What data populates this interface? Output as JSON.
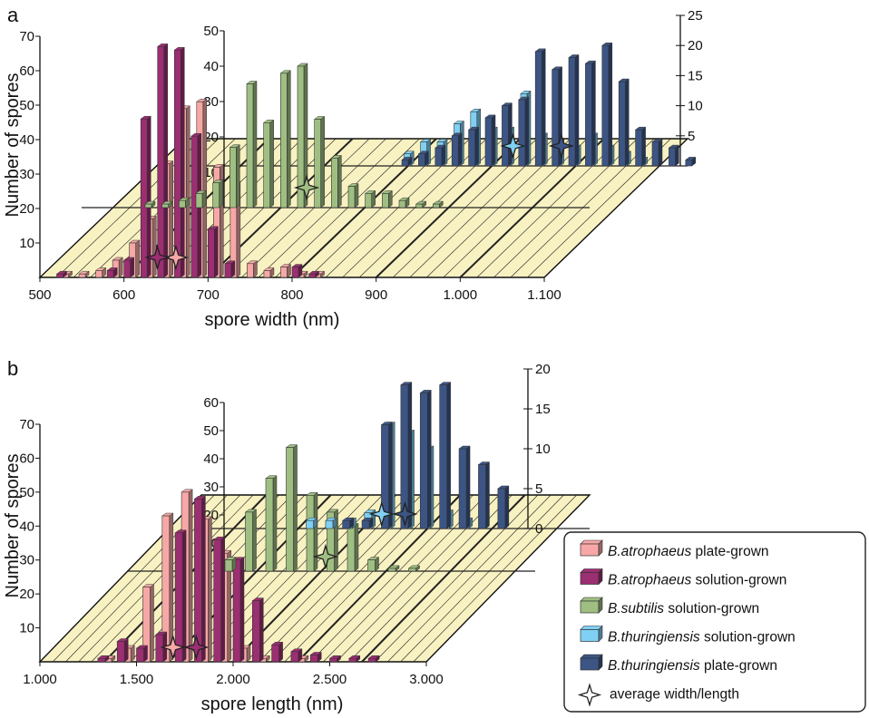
{
  "colors": {
    "atro_plate": "#f7a8a6",
    "atro_solution": "#9c2e72",
    "subtilis_solution": "#9fbf82",
    "thur_solution": "#7fd0f4",
    "thur_plate": "#3c5585",
    "floor": "#f8f1c1",
    "marker_fill": "#ffffff"
  },
  "legend": [
    {
      "species": "B.atrophaeus",
      "rest": " plate-grown",
      "series": "atro_plate"
    },
    {
      "species": "B.atrophaeus",
      "rest": " solution-grown",
      "series": "atro_solution"
    },
    {
      "species": "B.subtilis",
      "rest": " solution-grown",
      "series": "subtilis_solution"
    },
    {
      "species": "B.thuringiensis",
      "rest": " solution-grown",
      "series": "thur_solution"
    },
    {
      "species": "B.thuringiensis",
      "rest": " plate-grown",
      "series": "thur_plate"
    },
    {
      "species": "",
      "rest": "average width/length",
      "series": "marker"
    }
  ],
  "chart_data": [
    {
      "type": "bar",
      "panel": "a",
      "xlabel": "spore width (nm)",
      "ylabel": "Number of spores",
      "x_ticks": [
        "500",
        "600",
        "700",
        "800",
        "900",
        "1.000",
        "1.100"
      ],
      "xlim": [
        500,
        1100
      ],
      "back_axis_left_ticks": [
        "10",
        "20",
        "30",
        "40",
        "50"
      ],
      "back_axis_right_ticks": [
        "5",
        "10",
        "15",
        "20",
        "25"
      ],
      "y_axes": [
        {
          "ticks": [
            "10",
            "20",
            "30",
            "40",
            "50",
            "60",
            "70"
          ],
          "ylim": [
            0,
            70
          ]
        },
        {
          "ticks": [
            "10",
            "20",
            "30",
            "40",
            "50"
          ],
          "ylim": [
            0,
            50
          ]
        },
        {
          "ticks": [
            "5",
            "10",
            "15",
            "20",
            "25"
          ],
          "ylim": [
            0,
            25
          ]
        }
      ],
      "series": [
        {
          "name": "B.atrophaeus plate-grown",
          "row": 0,
          "x": [
            520,
            540,
            560,
            580,
            600,
            620,
            640,
            660,
            680,
            700,
            720,
            740,
            760,
            780,
            800,
            820,
            840
          ],
          "values": [
            1,
            1,
            2,
            5,
            10,
            17,
            33,
            49,
            51,
            32,
            27,
            4,
            2,
            3,
            1,
            1,
            0
          ]
        },
        {
          "name": "B.atrophaeus solution-grown",
          "row": 0,
          "x": [
            520,
            540,
            560,
            580,
            600,
            620,
            640,
            660,
            680,
            700,
            720,
            740,
            760,
            780,
            800,
            820,
            840
          ],
          "values": [
            1,
            0,
            0,
            2,
            5,
            46,
            67,
            66,
            41,
            14,
            4,
            0,
            0,
            0,
            3,
            1,
            0
          ]
        },
        {
          "name": "B.subtilis solution-grown",
          "row": 1,
          "x": [
            575,
            595,
            615,
            635,
            655,
            675,
            695,
            715,
            735,
            755,
            775,
            795,
            815,
            835,
            855,
            875,
            895,
            915,
            935
          ],
          "values": [
            1,
            1,
            2,
            4,
            7,
            17,
            35,
            24,
            38,
            40,
            25,
            14,
            6,
            4,
            4,
            2,
            1,
            1,
            0
          ]
        },
        {
          "name": "B.thuringiensis solution-grown",
          "row": 2,
          "x": [
            740,
            760,
            780,
            800,
            820,
            840,
            860,
            880,
            900,
            920,
            940,
            960,
            980,
            1000,
            1020,
            1040,
            1060,
            1080
          ],
          "values": [
            0,
            2,
            4,
            4,
            7,
            9,
            6,
            6,
            12,
            5,
            4,
            3,
            5,
            3,
            2,
            1,
            0,
            0
          ]
        },
        {
          "name": "B.thuringiensis plate-grown",
          "row": 2,
          "x": [
            750,
            770,
            790,
            810,
            830,
            850,
            870,
            890,
            910,
            930,
            950,
            970,
            990,
            1010,
            1030,
            1050,
            1070,
            1090
          ],
          "values": [
            1,
            2,
            3,
            5,
            6,
            8,
            10,
            11,
            19,
            16,
            18,
            17,
            20,
            14,
            6,
            4,
            3,
            1
          ]
        }
      ],
      "averages": [
        {
          "series": "B.atrophaeus plate-grown",
          "x": 658
        },
        {
          "series": "B.atrophaeus solution-grown",
          "x": 636
        },
        {
          "series": "B.subtilis solution-grown",
          "x": 762
        },
        {
          "series": "B.thuringiensis solution-grown",
          "x": 887
        },
        {
          "series": "B.thuringiensis plate-grown",
          "x": 945
        }
      ]
    },
    {
      "type": "bar",
      "panel": "b",
      "xlabel": "spore length (nm)",
      "ylabel": "Number of spores",
      "x_ticks": [
        "1.000",
        "1.500",
        "2.000",
        "2.500",
        "3.000"
      ],
      "xlim": [
        1000,
        3000
      ],
      "y_axes": [
        {
          "ticks": [
            "10",
            "20",
            "30",
            "40",
            "50",
            "60",
            "70"
          ],
          "ylim": [
            0,
            70
          ]
        },
        {
          "ticks": [
            "10",
            "20",
            "30",
            "40",
            "50",
            "60"
          ],
          "ylim": [
            0,
            60
          ]
        },
        {
          "ticks": [
            "0",
            "5",
            "10",
            "15",
            "20"
          ],
          "ylim": [
            0,
            20
          ]
        }
      ],
      "series": [
        {
          "name": "B.atrophaeus plate-grown",
          "row": 0,
          "x": [
            1200,
            1300,
            1400,
            1500,
            1600,
            1700,
            1800,
            1900,
            2000,
            2100,
            2200,
            2300,
            2400,
            2500,
            2600,
            2700
          ],
          "values": [
            0,
            1,
            4,
            22,
            43,
            50,
            42,
            32,
            4,
            1,
            0,
            1,
            0,
            0,
            0,
            0
          ]
        },
        {
          "name": "B.atrophaeus solution-grown",
          "row": 0,
          "x": [
            1200,
            1300,
            1400,
            1500,
            1600,
            1700,
            1800,
            1900,
            2000,
            2100,
            2200,
            2300,
            2400,
            2500,
            2600,
            2700
          ],
          "values": [
            0,
            1,
            6,
            4,
            8,
            38,
            48,
            36,
            30,
            18,
            5,
            3,
            2,
            1,
            1,
            1
          ]
        },
        {
          "name": "B.subtilis solution-grown",
          "row": 1,
          "x": [
            1480,
            1580,
            1680,
            1780,
            1880,
            1980,
            2080,
            2180,
            2280,
            2380
          ],
          "values": [
            4,
            21,
            33,
            44,
            27,
            21,
            16,
            4,
            1,
            1
          ]
        },
        {
          "name": "B.thuringiensis solution-grown",
          "row": 2,
          "x": [
            1540,
            1640,
            1740,
            1840,
            1940,
            2040,
            2140,
            2240,
            2340
          ],
          "values": [
            1,
            1,
            1,
            2,
            13,
            12,
            10,
            2,
            1
          ]
        },
        {
          "name": "B.thuringiensis plate-grown",
          "row": 2,
          "x": [
            1590,
            1690,
            1790,
            1890,
            1990,
            2090,
            2190,
            2290,
            2390,
            2490
          ],
          "values": [
            0,
            1,
            1,
            13,
            18,
            17,
            18,
            10,
            8,
            5
          ]
        }
      ],
      "averages": [
        {
          "series": "B.atrophaeus plate-grown",
          "x": 1670
        },
        {
          "series": "B.atrophaeus solution-grown",
          "x": 1790
        },
        {
          "series": "B.subtilis solution-grown",
          "x": 1955
        },
        {
          "series": "B.thuringiensis solution-grown",
          "x": 1910
        },
        {
          "series": "B.thuringiensis plate-grown",
          "x": 2030
        }
      ]
    }
  ]
}
